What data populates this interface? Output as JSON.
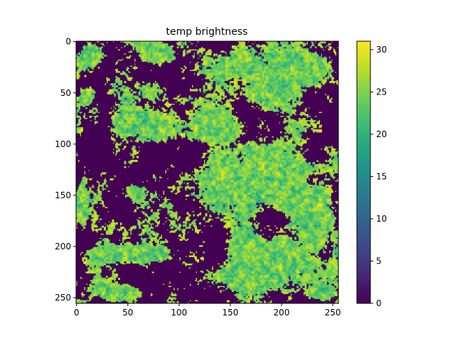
{
  "chart_data": {
    "type": "heatmap",
    "title": "temp brightness",
    "xlabel": "",
    "ylabel": "",
    "grid_size": [
      256,
      256
    ],
    "xlim": [
      0,
      255
    ],
    "ylim": [
      255,
      0
    ],
    "x_ticks": [
      0,
      50,
      100,
      150,
      200,
      250
    ],
    "y_ticks": [
      0,
      50,
      100,
      150,
      200,
      250
    ],
    "colormap": "viridis",
    "colorbar": {
      "range": [
        0,
        31
      ],
      "ticks": [
        0,
        5,
        10,
        15,
        20,
        25,
        30
      ]
    },
    "value_summary": {
      "background_value": 0,
      "cloud_value_range": [
        16,
        31
      ],
      "typical_cloud_value": 24
    },
    "cloud_regions": [
      {
        "x_range": [
          0,
          30
        ],
        "y_range": [
          0,
          30
        ]
      },
      {
        "x_range": [
          60,
          100
        ],
        "y_range": [
          0,
          25
        ]
      },
      {
        "x_range": [
          140,
          255
        ],
        "y_range": [
          0,
          60
        ]
      },
      {
        "x_range": [
          150,
          230
        ],
        "y_range": [
          20,
          70
        ]
      },
      {
        "x_range": [
          0,
          20
        ],
        "y_range": [
          40,
          65
        ]
      },
      {
        "x_range": [
          30,
          110
        ],
        "y_range": [
          60,
          100
        ]
      },
      {
        "x_range": [
          100,
          170
        ],
        "y_range": [
          65,
          105
        ]
      },
      {
        "x_range": [
          100,
          250
        ],
        "y_range": [
          90,
          175
        ]
      },
      {
        "x_range": [
          200,
          255
        ],
        "y_range": [
          120,
          215
        ]
      },
      {
        "x_range": [
          0,
          12
        ],
        "y_range": [
          130,
          190
        ]
      },
      {
        "x_range": [
          40,
          70
        ],
        "y_range": [
          135,
          160
        ]
      },
      {
        "x_range": [
          10,
          100
        ],
        "y_range": [
          195,
          220
        ]
      },
      {
        "x_range": [
          120,
          240
        ],
        "y_range": [
          175,
          255
        ]
      },
      {
        "x_range": [
          0,
          80
        ],
        "y_range": [
          235,
          255
        ]
      },
      {
        "x_range": [
          220,
          255
        ],
        "y_range": [
          235,
          255
        ]
      }
    ],
    "colors": {
      "background": "#440154",
      "low": "#3b528b",
      "mid": "#21918c",
      "high": "#5ec962",
      "peak": "#fde725"
    }
  }
}
